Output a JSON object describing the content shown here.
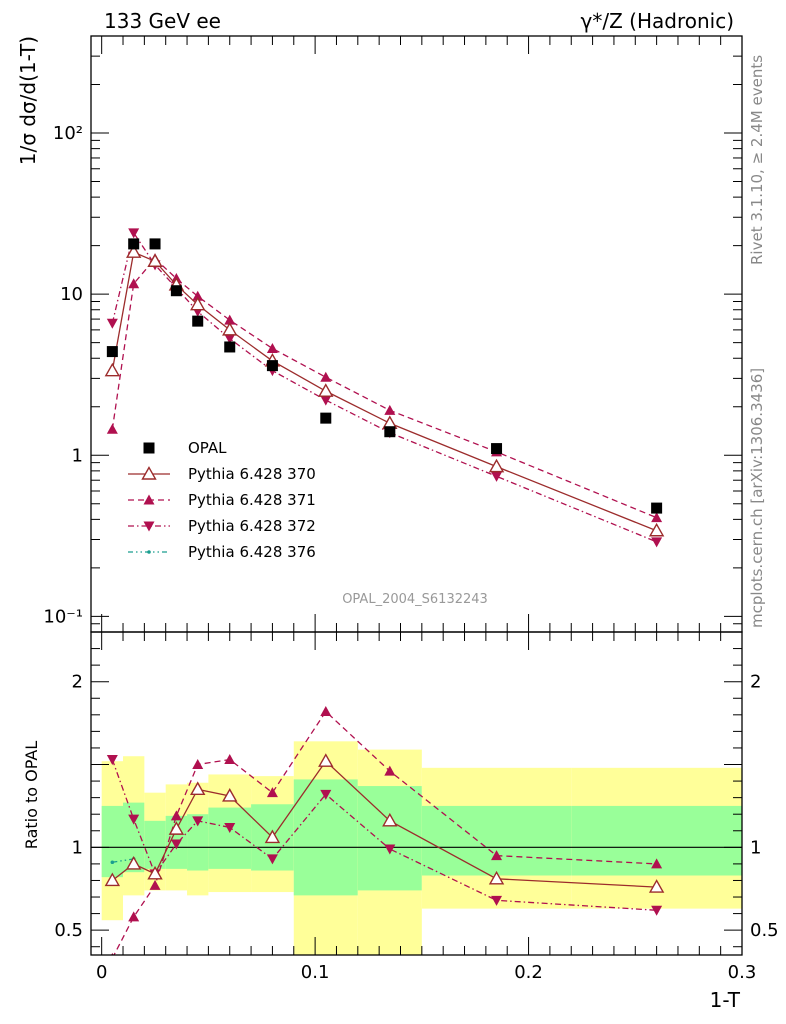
{
  "header": {
    "left": "133 GeV ee",
    "right": "γ*/Z (Hadronic)"
  },
  "side_text": {
    "rivet": "Rivet 3.1.10, ≥ 2.4M events",
    "mcplots": "mcplots.cern.ch [arXiv:1306.3436]"
  },
  "analysis_id": "OPAL_2004_S6132243",
  "chart_data": [
    {
      "type": "scatter",
      "panel": "main",
      "ylabel": "1/σ dσ/d(1-T)",
      "xlabel": "",
      "yscale": "log",
      "xlim": [
        -0.005,
        0.3
      ],
      "ylim": [
        0.08,
        400
      ],
      "y_tick_labels": [
        "10⁻¹",
        "1",
        "10",
        "10²"
      ],
      "x": [
        0.005,
        0.015,
        0.025,
        0.035,
        0.045,
        0.06,
        0.08,
        0.105,
        0.135,
        0.185,
        0.26
      ],
      "series": [
        {
          "name": "OPAL",
          "color": "#000000",
          "marker": "square",
          "line": "none",
          "values": [
            4.4,
            20.5,
            20.5,
            10.5,
            6.8,
            4.7,
            3.6,
            1.7,
            1.4,
            1.1,
            0.47
          ]
        },
        {
          "name": "Pythia 6.428 370",
          "color": "#9c2c2c",
          "marker": "triangle-open",
          "line": "solid",
          "values": [
            3.35,
            18.2,
            16.0,
            11.4,
            8.6,
            6.0,
            3.85,
            2.5,
            1.58,
            0.85,
            0.34
          ]
        },
        {
          "name": "Pythia 6.428 371",
          "color": "#b0104f",
          "marker": "triangle-up",
          "line": "dashed",
          "values": [
            1.45,
            11.6,
            16.6,
            12.5,
            9.7,
            6.9,
            4.6,
            3.05,
            1.9,
            1.05,
            0.41
          ]
        },
        {
          "name": "Pythia 6.428 372",
          "color": "#b0104f",
          "marker": "triangle-down",
          "line": "dashdot",
          "values": [
            6.6,
            24.0,
            15.2,
            10.9,
            7.8,
            5.3,
            3.35,
            2.2,
            1.38,
            0.74,
            0.29
          ]
        },
        {
          "name": "Pythia 6.428 376",
          "color": "#1a9e8f",
          "marker": "none",
          "line": "dashdotdot",
          "values": [
            4.0,
            19.0
          ]
        }
      ]
    },
    {
      "type": "scatter",
      "panel": "ratio",
      "ylabel": "Ratio to OPAL",
      "xlabel": "1-T",
      "xlim": [
        -0.005,
        0.3
      ],
      "ylim": [
        0.35,
        2.3
      ],
      "x_tick_labels": [
        "0",
        "0.1",
        "0.2",
        "0.3"
      ],
      "y_tick_labels": [
        "0.5",
        "1",
        "2"
      ],
      "reference_line": 1,
      "x": [
        0.005,
        0.015,
        0.025,
        0.035,
        0.045,
        0.06,
        0.08,
        0.105,
        0.135,
        0.185,
        0.26
      ],
      "bands": {
        "edges": [
          0.0,
          0.01,
          0.02,
          0.03,
          0.04,
          0.05,
          0.07,
          0.09,
          0.12,
          0.15,
          0.22,
          0.3
        ],
        "yellow_low": [
          0.56,
          0.71,
          0.74,
          0.74,
          0.71,
          0.73,
          0.73,
          0.34,
          0.34,
          0.63,
          0.63
        ],
        "yellow_high": [
          1.52,
          1.55,
          1.33,
          1.38,
          1.39,
          1.44,
          1.43,
          1.64,
          1.59,
          1.48,
          1.48
        ],
        "green_low": [
          0.82,
          0.85,
          0.87,
          0.87,
          0.86,
          0.87,
          0.86,
          0.71,
          0.74,
          0.83,
          0.83
        ],
        "green_high": [
          1.25,
          1.27,
          1.16,
          1.19,
          1.2,
          1.24,
          1.26,
          1.41,
          1.37,
          1.25,
          1.25
        ]
      },
      "series": [
        {
          "name": "Pythia 6.428 370",
          "values": [
            0.8,
            0.9,
            0.84,
            1.11,
            1.35,
            1.31,
            1.06,
            1.52,
            1.16,
            0.81,
            0.76
          ]
        },
        {
          "name": "Pythia 6.428 371",
          "values": [
            0.33,
            0.58,
            0.77,
            1.19,
            1.5,
            1.53,
            1.33,
            1.82,
            1.46,
            0.95,
            0.9
          ]
        },
        {
          "name": "Pythia 6.428 372",
          "values": [
            1.53,
            1.17,
            0.84,
            1.02,
            1.16,
            1.12,
            0.93,
            1.32,
            0.99,
            0.68,
            0.62
          ]
        },
        {
          "name": "Pythia 6.428 376",
          "values": [
            0.91,
            0.93
          ]
        }
      ]
    }
  ]
}
